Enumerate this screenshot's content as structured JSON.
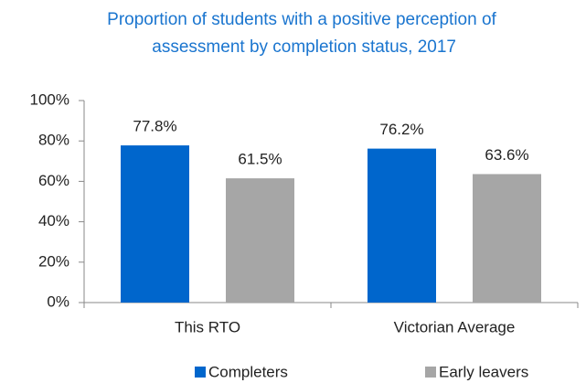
{
  "chart_data": {
    "type": "bar",
    "title": "Proportion of students with a positive perception of assessment by completion status, 2017",
    "categories": [
      "This RTO",
      "Victorian Average"
    ],
    "series": [
      {
        "name": "Completers",
        "color": "#0066cc",
        "values": [
          77.8,
          76.2
        ],
        "value_labels": [
          "77.8%",
          "76.2%"
        ]
      },
      {
        "name": "Early leavers",
        "color": "#a6a6a6",
        "values": [
          61.5,
          63.6
        ],
        "value_labels": [
          "61.5%",
          "63.6%"
        ]
      }
    ],
    "ylim": [
      0,
      100
    ],
    "yticks": [
      {
        "value": 0,
        "label": "0%"
      },
      {
        "value": 20,
        "label": "20%"
      },
      {
        "value": 40,
        "label": "40%"
      },
      {
        "value": 60,
        "label": "60%"
      },
      {
        "value": 80,
        "label": "80%"
      },
      {
        "value": 100,
        "label": "100%"
      }
    ],
    "grid": false,
    "legend": "bottom"
  }
}
